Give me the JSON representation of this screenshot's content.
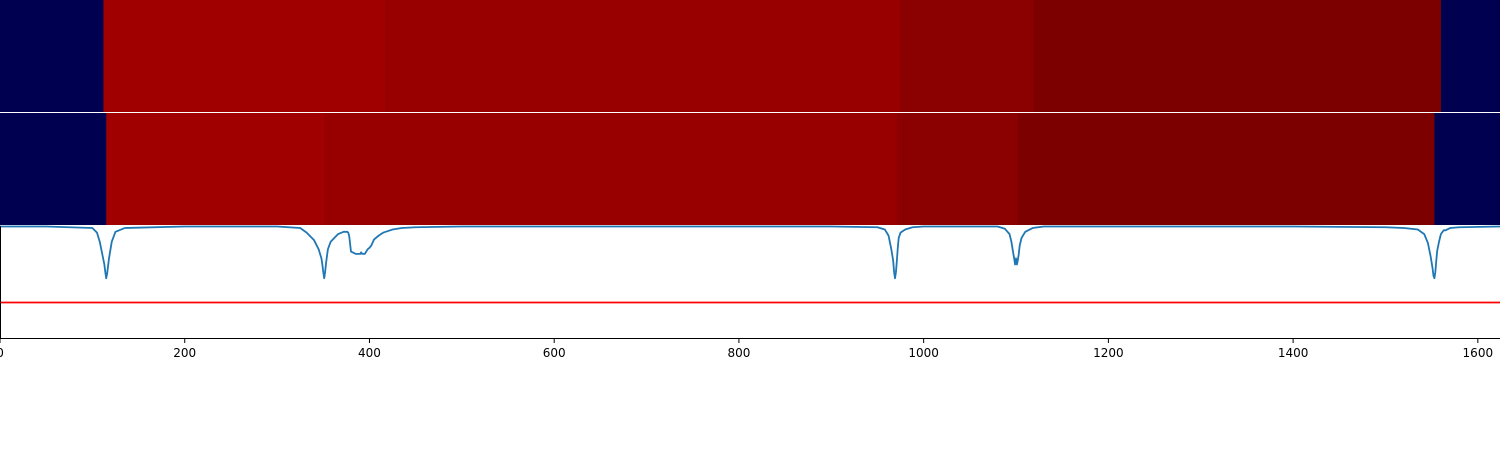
{
  "chart_data": [
    {
      "panel": "top-segmentation-bar",
      "type": "heatmap",
      "xlim": [
        0,
        1624
      ],
      "segments": [
        {
          "start": 0,
          "end": 112,
          "color": "#000050"
        },
        {
          "start": 112,
          "end": 417,
          "color": "#a00000"
        },
        {
          "start": 417,
          "end": 974,
          "color": "#980000"
        },
        {
          "start": 974,
          "end": 1119,
          "color": "#8b0000"
        },
        {
          "start": 1119,
          "end": 1560,
          "color": "#7c0000"
        },
        {
          "start": 1560,
          "end": 1624,
          "color": "#000050"
        }
      ]
    },
    {
      "panel": "middle-segmentation-bar",
      "type": "heatmap",
      "xlim": [
        0,
        1624
      ],
      "segments": [
        {
          "start": 0,
          "end": 115,
          "color": "#000050"
        },
        {
          "start": 115,
          "end": 351,
          "color": "#a00000"
        },
        {
          "start": 351,
          "end": 971,
          "color": "#980000"
        },
        {
          "start": 971,
          "end": 1102,
          "color": "#8b0000"
        },
        {
          "start": 1102,
          "end": 1553,
          "color": "#7c0000"
        },
        {
          "start": 1553,
          "end": 1624,
          "color": "#000050"
        }
      ]
    },
    {
      "panel": "bottom-signal",
      "type": "line",
      "xlim": [
        0,
        1624
      ],
      "ylim": [
        -1.0,
        0.0
      ],
      "series": [
        {
          "color": "#1f77b4",
          "x": [
            0,
            50,
            100,
            105,
            108,
            111,
            113,
            114,
            115,
            116,
            118,
            121,
            125,
            135,
            200,
            300,
            325,
            332,
            340,
            345,
            348,
            349,
            350,
            351,
            352,
            353,
            355,
            358,
            362,
            366,
            370,
            372,
            374,
            376,
            377,
            378,
            380,
            385,
            390,
            391,
            392,
            395,
            398,
            400,
            402,
            405,
            410,
            415,
            420,
            425,
            435,
            450,
            500,
            700,
            900,
            950,
            958,
            962,
            965,
            967,
            968,
            969,
            970,
            971,
            972,
            973,
            975,
            980,
            988,
            1000,
            1080,
            1088,
            1093,
            1095,
            1097,
            1098,
            1099,
            1100,
            1101,
            1102,
            1103,
            1104,
            1106,
            1110,
            1118,
            1130,
            1200,
            1400,
            1500,
            1520,
            1535,
            1542,
            1546,
            1549,
            1551,
            1552,
            1553,
            1554,
            1555,
            1556,
            1558,
            1560,
            1563,
            1565,
            1570,
            1580,
            1624
          ],
          "y": [
            0,
            0,
            -0.02,
            -0.08,
            -0.2,
            -0.38,
            -0.5,
            -0.6,
            -0.68,
            -0.62,
            -0.42,
            -0.2,
            -0.07,
            -0.02,
            0,
            0,
            -0.02,
            -0.08,
            -0.18,
            -0.3,
            -0.42,
            -0.5,
            -0.6,
            -0.68,
            -0.6,
            -0.48,
            -0.3,
            -0.2,
            -0.15,
            -0.1,
            -0.08,
            -0.07,
            -0.07,
            -0.07,
            -0.08,
            -0.12,
            -0.33,
            -0.36,
            -0.36,
            -0.34,
            -0.36,
            -0.36,
            -0.3,
            -0.28,
            -0.25,
            -0.17,
            -0.12,
            -0.08,
            -0.06,
            -0.04,
            -0.02,
            -0.01,
            0,
            0,
            0,
            -0.01,
            -0.04,
            -0.12,
            -0.3,
            -0.45,
            -0.6,
            -0.68,
            -0.6,
            -0.45,
            -0.28,
            -0.15,
            -0.08,
            -0.04,
            -0.01,
            0,
            0,
            -0.03,
            -0.1,
            -0.2,
            -0.35,
            -0.42,
            -0.5,
            -0.42,
            -0.5,
            -0.44,
            -0.36,
            -0.25,
            -0.15,
            -0.07,
            -0.02,
            0,
            0,
            0,
            -0.01,
            -0.02,
            -0.04,
            -0.1,
            -0.22,
            -0.4,
            -0.55,
            -0.65,
            -0.68,
            -0.6,
            -0.45,
            -0.32,
            -0.2,
            -0.1,
            -0.05,
            -0.05,
            -0.02,
            -0.01,
            0
          ]
        },
        {
          "color": "#ff0000",
          "x": [
            0,
            1624
          ],
          "y": [
            -1.0,
            -1.0
          ]
        }
      ],
      "xticks": [
        0,
        200,
        400,
        600,
        800,
        1000,
        1200,
        1400,
        1600
      ]
    }
  ]
}
